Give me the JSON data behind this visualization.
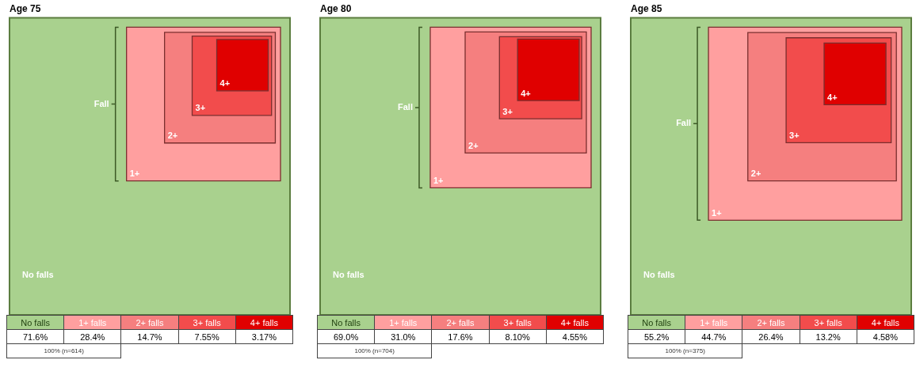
{
  "chart_data": [
    {
      "type": "other",
      "title": "Age 75",
      "categories": [
        "No falls",
        "1+ falls",
        "2+ falls",
        "3+ falls",
        "4+ falls"
      ],
      "values": [
        71.6,
        28.4,
        14.7,
        7.55,
        3.17
      ],
      "value_labels": [
        "71.6%",
        "28.4%",
        "14.7%",
        "7.55%",
        "3.17%"
      ],
      "colors": [
        "#a9d18e",
        "#ff9f9f",
        "#f57f7f",
        "#f24c4c",
        "#e00000"
      ],
      "annotations": [
        "Fall",
        "No falls",
        "1+",
        "2+",
        "3+",
        "4+",
        "100% (n=614)"
      ]
    },
    {
      "type": "other",
      "title": "Age 80",
      "categories": [
        "No falls",
        "1+ falls",
        "2+ falls",
        "3+ falls",
        "4+ falls"
      ],
      "values": [
        69.0,
        31.0,
        17.6,
        8.1,
        4.55
      ],
      "value_labels": [
        "69.0%",
        "31.0%",
        "17.6%",
        "8.10%",
        "4.55%"
      ],
      "colors": [
        "#a9d18e",
        "#ff9f9f",
        "#f57f7f",
        "#f24c4c",
        "#e00000"
      ],
      "annotations": [
        "Fall",
        "No falls",
        "1+",
        "2+",
        "3+",
        "4+",
        "100% (n=704)"
      ]
    },
    {
      "type": "other",
      "title": "Age 85",
      "categories": [
        "No falls",
        "1+ falls",
        "2+ falls",
        "3+ falls",
        "4+ falls"
      ],
      "values": [
        55.2,
        44.7,
        26.4,
        13.2,
        4.58
      ],
      "value_labels": [
        "55.2%",
        "44.7%",
        "26.4%",
        "13.2%",
        "4.58%"
      ],
      "colors": [
        "#a9d18e",
        "#ff9f9f",
        "#f57f7f",
        "#f24c4c",
        "#e00000"
      ],
      "annotations": [
        "Fall",
        "No falls",
        "1+",
        "2+",
        "3+",
        "4+",
        "100% (n=375)"
      ]
    }
  ]
}
